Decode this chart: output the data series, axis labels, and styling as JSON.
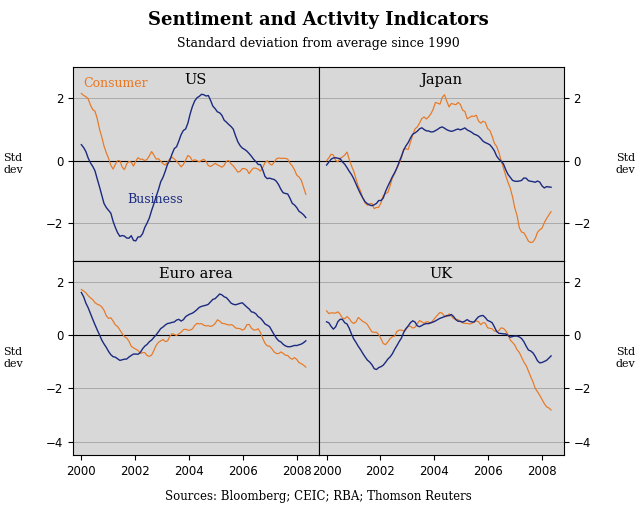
{
  "title": "Sentiment and Activity Indicators",
  "subtitle": "Standard deviation from average since 1990",
  "source": "Sources: Bloomberg; CEIC; RBA; Thomson Reuters",
  "consumer_label": "Consumer",
  "business_label": "Business",
  "consumer_color": "#E87722",
  "business_color": "#1B2A80",
  "panel_labels": [
    "US",
    "Japan",
    "Euro area",
    "UK"
  ],
  "background_color": "#D8D8D8",
  "grid_color": "#C0C0C0",
  "us_consumer": [
    2.1,
    2.05,
    1.95,
    1.85,
    1.75,
    1.6,
    1.45,
    1.25,
    1.0,
    0.75,
    0.5,
    0.3,
    0.15,
    0.05,
    -0.05,
    0.02,
    0.1,
    0.05,
    -0.1,
    -0.2,
    -0.15,
    -0.05,
    0.0,
    -0.05,
    0.08,
    0.15,
    0.12,
    0.08,
    0.05,
    0.1,
    0.15,
    0.18,
    0.15,
    0.1,
    0.08,
    0.05,
    0.0,
    0.05,
    0.1,
    0.08,
    0.05,
    0.02,
    0.0,
    -0.02,
    -0.05,
    0.0,
    0.05,
    0.1,
    0.12,
    0.1,
    0.08,
    0.05,
    0.0,
    -0.05,
    -0.08,
    -0.1,
    -0.12,
    -0.15,
    -0.18,
    -0.15,
    -0.12,
    -0.1,
    -0.08,
    -0.05,
    -0.08,
    -0.12,
    -0.18,
    -0.25,
    -0.3,
    -0.35,
    -0.4,
    -0.38,
    -0.35,
    -0.32,
    -0.3,
    -0.28,
    -0.25,
    -0.22,
    -0.2,
    -0.18,
    -0.15,
    -0.12,
    -0.1,
    -0.08,
    -0.05,
    -0.02,
    0.0,
    0.05,
    0.08,
    0.05,
    0.02,
    0.0,
    -0.05,
    -0.1,
    -0.2,
    -0.35,
    -0.5,
    -0.65,
    -0.85,
    -1.05
  ],
  "us_business": [
    0.65,
    0.5,
    0.35,
    0.15,
    -0.05,
    -0.25,
    -0.45,
    -0.65,
    -0.85,
    -1.05,
    -1.25,
    -1.45,
    -1.65,
    -1.82,
    -2.0,
    -2.15,
    -2.28,
    -2.38,
    -2.45,
    -2.5,
    -2.52,
    -2.48,
    -2.42,
    -2.52,
    -2.62,
    -2.55,
    -2.42,
    -2.28,
    -2.1,
    -1.92,
    -1.72,
    -1.52,
    -1.32,
    -1.12,
    -0.92,
    -0.72,
    -0.52,
    -0.32,
    -0.12,
    0.05,
    0.2,
    0.35,
    0.5,
    0.65,
    0.8,
    0.95,
    1.1,
    1.3,
    1.5,
    1.7,
    1.88,
    2.0,
    2.08,
    2.12,
    2.1,
    2.05,
    1.98,
    1.88,
    1.78,
    1.68,
    1.58,
    1.48,
    1.38,
    1.28,
    1.18,
    1.08,
    0.98,
    0.88,
    0.78,
    0.68,
    0.58,
    0.48,
    0.38,
    0.28,
    0.18,
    0.08,
    -0.02,
    -0.12,
    -0.22,
    -0.3,
    -0.38,
    -0.45,
    -0.5,
    -0.55,
    -0.6,
    -0.65,
    -0.7,
    -0.75,
    -0.82,
    -0.9,
    -1.0,
    -1.1,
    -1.2,
    -1.3,
    -1.4,
    -1.5,
    -1.58,
    -1.65,
    -1.7,
    -1.72
  ],
  "japan_consumer": [
    -0.08,
    -0.02,
    0.05,
    0.1,
    0.12,
    0.08,
    0.05,
    0.02,
    -0.05,
    -0.12,
    -0.22,
    -0.35,
    -0.5,
    -0.68,
    -0.85,
    -1.0,
    -1.15,
    -1.28,
    -1.38,
    -1.45,
    -1.5,
    -1.48,
    -1.42,
    -1.35,
    -1.28,
    -1.18,
    -1.05,
    -0.9,
    -0.72,
    -0.55,
    -0.38,
    -0.22,
    -0.08,
    0.05,
    0.18,
    0.32,
    0.5,
    0.68,
    0.85,
    1.0,
    1.12,
    1.22,
    1.28,
    1.35,
    1.42,
    1.5,
    1.58,
    1.65,
    1.72,
    1.78,
    1.85,
    1.9,
    1.85,
    1.78,
    1.82,
    1.88,
    1.75,
    1.78,
    1.82,
    1.75,
    1.68,
    1.75,
    1.68,
    1.62,
    1.55,
    1.48,
    1.42,
    1.35,
    1.28,
    1.22,
    1.15,
    1.05,
    0.92,
    0.78,
    0.62,
    0.45,
    0.25,
    0.05,
    -0.2,
    -0.45,
    -0.72,
    -1.0,
    -1.28,
    -1.55,
    -1.82,
    -2.05,
    -2.22,
    -2.35,
    -2.45,
    -2.52,
    -2.55,
    -2.52,
    -2.45,
    -2.35,
    -2.25,
    -2.15,
    -2.05,
    -1.95,
    -1.85,
    -1.75
  ],
  "japan_business": [
    -0.08,
    -0.02,
    0.02,
    0.05,
    0.08,
    0.05,
    0.02,
    -0.05,
    -0.12,
    -0.22,
    -0.35,
    -0.5,
    -0.65,
    -0.82,
    -0.98,
    -1.1,
    -1.22,
    -1.32,
    -1.38,
    -1.42,
    -1.45,
    -1.42,
    -1.38,
    -1.32,
    -1.25,
    -1.15,
    -1.02,
    -0.88,
    -0.72,
    -0.55,
    -0.38,
    -0.2,
    -0.02,
    0.15,
    0.32,
    0.48,
    0.62,
    0.75,
    0.85,
    0.92,
    0.98,
    1.02,
    1.05,
    1.02,
    0.98,
    0.98,
    1.0,
    1.02,
    1.02,
    1.02,
    1.02,
    1.0,
    0.98,
    0.98,
    0.98,
    0.98,
    0.98,
    1.0,
    1.02,
    1.0,
    0.98,
    0.98,
    0.95,
    0.92,
    0.88,
    0.85,
    0.82,
    0.78,
    0.72,
    0.65,
    0.58,
    0.5,
    0.42,
    0.32,
    0.22,
    0.12,
    0.02,
    -0.08,
    -0.18,
    -0.28,
    -0.38,
    -0.45,
    -0.52,
    -0.58,
    -0.62,
    -0.65,
    -0.68,
    -0.65,
    -0.62,
    -0.62,
    -0.62,
    -0.65,
    -0.68,
    -0.72,
    -0.75,
    -0.78,
    -0.82,
    -0.85,
    -0.88,
    -0.92
  ],
  "euro_consumer": [
    1.88,
    1.75,
    1.62,
    1.5,
    1.42,
    1.35,
    1.28,
    1.2,
    1.12,
    1.02,
    0.92,
    0.82,
    0.72,
    0.62,
    0.5,
    0.38,
    0.25,
    0.12,
    -0.02,
    -0.15,
    -0.28,
    -0.38,
    -0.48,
    -0.55,
    -0.62,
    -0.65,
    -0.68,
    -0.7,
    -0.68,
    -0.65,
    -0.62,
    -0.58,
    -0.52,
    -0.45,
    -0.38,
    -0.3,
    -0.22,
    -0.15,
    -0.08,
    0.0,
    0.05,
    0.08,
    0.12,
    0.15,
    0.18,
    0.2,
    0.22,
    0.25,
    0.28,
    0.32,
    0.38,
    0.42,
    0.45,
    0.45,
    0.42,
    0.42,
    0.42,
    0.42,
    0.45,
    0.48,
    0.5,
    0.5,
    0.48,
    0.45,
    0.42,
    0.38,
    0.35,
    0.32,
    0.3,
    0.32,
    0.35,
    0.38,
    0.35,
    0.32,
    0.28,
    0.22,
    0.15,
    0.08,
    0.02,
    -0.05,
    -0.12,
    -0.2,
    -0.28,
    -0.35,
    -0.42,
    -0.5,
    -0.58,
    -0.65,
    -0.72,
    -0.78,
    -0.82,
    -0.85,
    -0.88,
    -0.9,
    -0.92,
    -0.95,
    -0.98,
    -1.0,
    -1.02,
    -1.05
  ],
  "euro_business": [
    1.52,
    1.38,
    1.22,
    1.05,
    0.85,
    0.65,
    0.45,
    0.25,
    0.05,
    -0.15,
    -0.32,
    -0.45,
    -0.58,
    -0.68,
    -0.78,
    -0.85,
    -0.9,
    -0.92,
    -0.92,
    -0.9,
    -0.85,
    -0.8,
    -0.75,
    -0.7,
    -0.65,
    -0.6,
    -0.55,
    -0.48,
    -0.4,
    -0.32,
    -0.22,
    -0.12,
    -0.02,
    0.08,
    0.18,
    0.28,
    0.35,
    0.4,
    0.42,
    0.45,
    0.48,
    0.52,
    0.55,
    0.58,
    0.62,
    0.65,
    0.7,
    0.75,
    0.8,
    0.85,
    0.9,
    0.95,
    1.0,
    1.05,
    1.1,
    1.15,
    1.2,
    1.28,
    1.35,
    1.38,
    1.42,
    1.45,
    1.45,
    1.42,
    1.38,
    1.35,
    1.32,
    1.28,
    1.25,
    1.22,
    1.18,
    1.15,
    1.1,
    1.05,
    1.0,
    0.95,
    0.88,
    0.8,
    0.72,
    0.62,
    0.52,
    0.42,
    0.32,
    0.22,
    0.12,
    0.02,
    -0.08,
    -0.18,
    -0.25,
    -0.32,
    -0.38,
    -0.42,
    -0.45,
    -0.45,
    -0.42,
    -0.38,
    -0.32,
    -0.28,
    -0.25,
    -0.22
  ],
  "uk_consumer": [
    0.88,
    0.82,
    0.78,
    0.72,
    0.72,
    0.78,
    0.82,
    0.78,
    0.72,
    0.65,
    0.55,
    0.48,
    0.45,
    0.5,
    0.55,
    0.52,
    0.48,
    0.42,
    0.35,
    0.25,
    0.15,
    0.05,
    -0.05,
    -0.15,
    -0.25,
    -0.3,
    -0.28,
    -0.22,
    -0.15,
    -0.08,
    0.0,
    0.1,
    0.18,
    0.25,
    0.28,
    0.32,
    0.35,
    0.35,
    0.38,
    0.42,
    0.45,
    0.48,
    0.52,
    0.55,
    0.58,
    0.6,
    0.62,
    0.65,
    0.67,
    0.68,
    0.7,
    0.72,
    0.72,
    0.7,
    0.68,
    0.65,
    0.62,
    0.6,
    0.58,
    0.55,
    0.52,
    0.5,
    0.48,
    0.48,
    0.5,
    0.52,
    0.52,
    0.5,
    0.48,
    0.45,
    0.42,
    0.38,
    0.35,
    0.32,
    0.28,
    0.25,
    0.22,
    0.18,
    0.12,
    0.05,
    -0.02,
    -0.12,
    -0.22,
    -0.35,
    -0.5,
    -0.65,
    -0.82,
    -1.0,
    -1.18,
    -1.38,
    -1.58,
    -1.78,
    -1.98,
    -2.15,
    -2.3,
    -2.42,
    -2.55,
    -2.65,
    -2.75,
    -2.82
  ],
  "uk_business": [
    0.52,
    0.45,
    0.38,
    0.35,
    0.42,
    0.55,
    0.62,
    0.58,
    0.5,
    0.38,
    0.22,
    0.05,
    -0.12,
    -0.28,
    -0.45,
    -0.6,
    -0.72,
    -0.82,
    -0.92,
    -1.0,
    -1.08,
    -1.15,
    -1.2,
    -1.22,
    -1.2,
    -1.12,
    -1.02,
    -0.9,
    -0.78,
    -0.65,
    -0.5,
    -0.35,
    -0.2,
    -0.05,
    0.08,
    0.2,
    0.3,
    0.38,
    0.42,
    0.45,
    0.45,
    0.44,
    0.43,
    0.42,
    0.43,
    0.46,
    0.5,
    0.55,
    0.62,
    0.7,
    0.75,
    0.78,
    0.76,
    0.73,
    0.7,
    0.66,
    0.62,
    0.58,
    0.55,
    0.52,
    0.5,
    0.48,
    0.46,
    0.45,
    0.46,
    0.5,
    0.58,
    0.62,
    0.68,
    0.65,
    0.6,
    0.55,
    0.48,
    0.4,
    0.3,
    0.22,
    0.15,
    0.1,
    0.05,
    0.02,
    0.0,
    -0.02,
    -0.05,
    -0.08,
    -0.1,
    -0.15,
    -0.2,
    -0.28,
    -0.38,
    -0.48,
    -0.58,
    -0.68,
    -0.78,
    -0.88,
    -0.98,
    -1.05,
    -1.02,
    -0.98,
    -0.88,
    -0.78
  ]
}
